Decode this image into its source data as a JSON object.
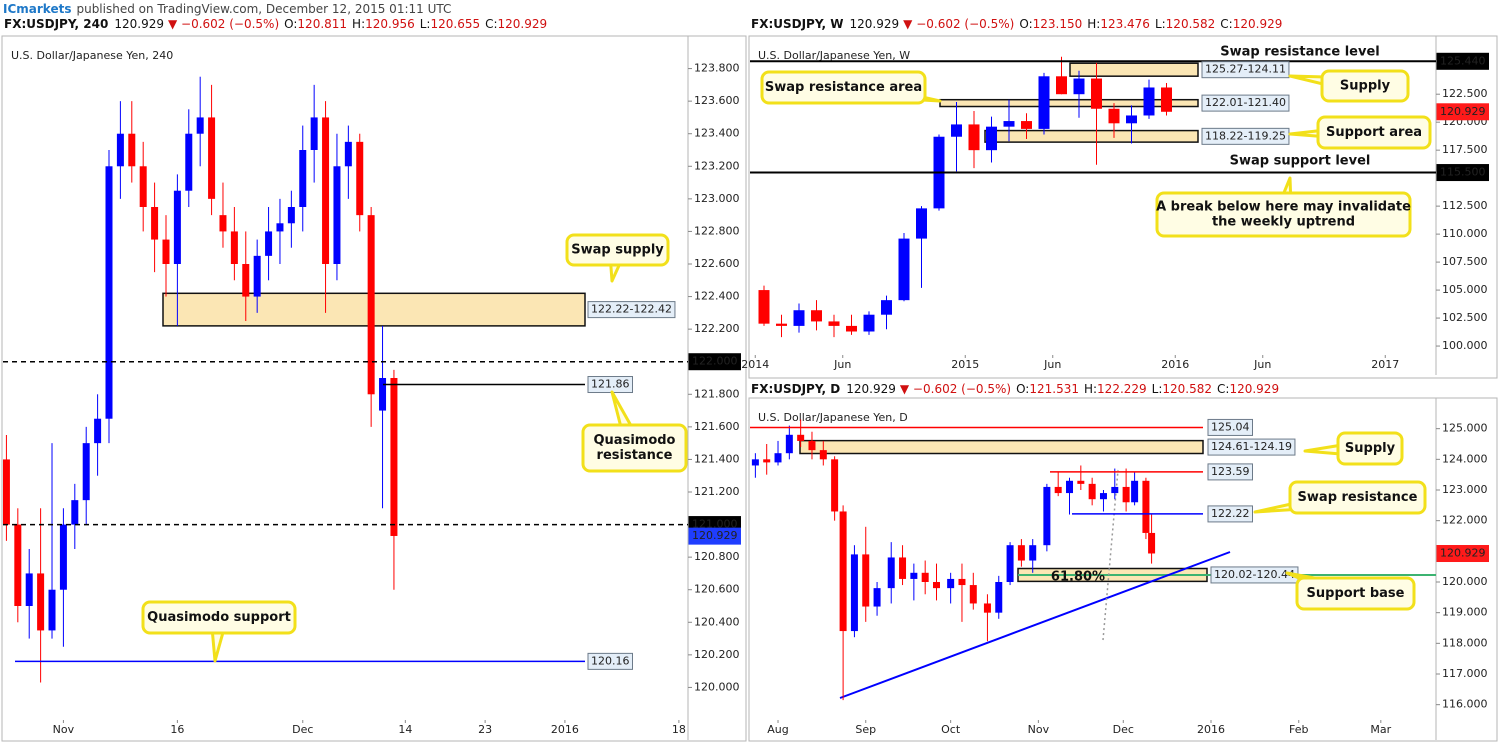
{
  "header": {
    "author": "ICmarkets",
    "text": "published on TradingView.com, December 12, 2015 01:11 UTC"
  },
  "chart_data": [
    {
      "type": "candlestick",
      "symbol": "FX:USDJPY, 240",
      "last": 120.929,
      "last_color": "#1f3dff",
      "change": "▼ −0.602 (−0.5%)",
      "ohlc_labels": [
        "O:",
        "H:",
        "L:",
        "C:"
      ],
      "ohlc_values": [
        "120.811",
        "120.956",
        "120.655",
        "120.929"
      ],
      "watermark": "U.S. Dollar/Japanese Yen, 240",
      "up_color": "#0000ff",
      "down_color": "#ff0000",
      "xlim": [
        -5.3,
        54.8
      ],
      "ylim": [
        119.8,
        124.0
      ],
      "xticks": [
        {
          "value": 0,
          "label": "Nov"
        },
        {
          "value": 10,
          "label": "16"
        },
        {
          "value": 21,
          "label": "Dec"
        },
        {
          "value": 30,
          "label": "14"
        },
        {
          "value": 37,
          "label": "23"
        },
        {
          "value": 44,
          "label": "2016"
        },
        {
          "value": 54,
          "label": "18"
        }
      ],
      "yticks": [
        {
          "value": 120.0,
          "label": "120.000"
        },
        {
          "value": 120.2,
          "label": "120.200"
        },
        {
          "value": 120.4,
          "label": "120.400"
        },
        {
          "value": 120.6,
          "label": "120.600"
        },
        {
          "value": 120.8,
          "label": "120.800"
        },
        {
          "value": 121.2,
          "label": "121.200"
        },
        {
          "value": 121.4,
          "label": "121.400"
        },
        {
          "value": 121.6,
          "label": "121.600"
        },
        {
          "value": 121.8,
          "label": "121.800"
        },
        {
          "value": 122.2,
          "label": "122.200"
        },
        {
          "value": 122.4,
          "label": "122.400"
        },
        {
          "value": 122.6,
          "label": "122.600"
        },
        {
          "value": 122.8,
          "label": "122.800"
        },
        {
          "value": 123.0,
          "label": "123.000"
        },
        {
          "value": 123.2,
          "label": "123.200"
        },
        {
          "value": 123.4,
          "label": "123.400"
        },
        {
          "value": 123.6,
          "label": "123.600"
        },
        {
          "value": 123.8,
          "label": "123.800"
        }
      ],
      "x": [
        -5,
        -4,
        -3,
        -2,
        -1,
        0,
        1,
        2,
        3,
        4,
        5,
        6,
        7,
        8,
        9,
        10,
        11,
        12,
        13,
        14,
        15,
        16,
        17,
        18,
        19,
        20,
        21,
        22,
        23,
        24,
        25,
        26,
        27,
        28,
        29
      ],
      "open": [
        121.4,
        121.0,
        120.5,
        120.7,
        120.35,
        120.6,
        121.0,
        121.15,
        121.5,
        121.65,
        123.2,
        123.4,
        123.2,
        122.95,
        122.75,
        122.6,
        123.05,
        123.4,
        123.5,
        122.9,
        122.8,
        122.6,
        122.4,
        122.65,
        122.8,
        122.85,
        122.95,
        123.3,
        123.5,
        122.6,
        123.2,
        123.35,
        122.9,
        121.7,
        121.9
      ],
      "high": [
        121.55,
        121.1,
        120.85,
        121.1,
        121.5,
        121.1,
        121.25,
        121.6,
        121.8,
        123.3,
        123.6,
        123.6,
        123.35,
        123.1,
        122.9,
        123.15,
        123.55,
        123.75,
        123.7,
        123.1,
        122.95,
        122.8,
        122.75,
        122.95,
        123.0,
        123.05,
        123.45,
        123.7,
        123.6,
        123.4,
        123.45,
        123.4,
        122.95,
        122.22,
        121.95
      ],
      "low": [
        120.9,
        120.4,
        120.3,
        120.03,
        120.3,
        120.25,
        120.85,
        121.0,
        121.3,
        121.5,
        123.0,
        123.1,
        122.8,
        122.55,
        122.4,
        122.22,
        122.95,
        123.2,
        122.9,
        122.7,
        122.5,
        122.25,
        122.3,
        122.5,
        122.6,
        122.7,
        122.8,
        123.1,
        122.3,
        122.5,
        123.0,
        122.8,
        121.6,
        121.1,
        120.6
      ],
      "close": [
        121.0,
        120.5,
        120.7,
        120.35,
        120.6,
        121.0,
        121.15,
        121.5,
        121.65,
        123.2,
        123.4,
        123.2,
        122.95,
        122.75,
        122.6,
        123.05,
        123.4,
        123.5,
        123.0,
        122.8,
        122.6,
        122.4,
        122.65,
        122.8,
        122.85,
        122.95,
        123.3,
        123.5,
        122.6,
        123.2,
        123.35,
        122.9,
        121.8,
        121.9,
        120.93
      ],
      "lines": [
        {
          "value": 122,
          "label": "122.000",
          "color": "#000000",
          "dashed": true
        },
        {
          "value": 121,
          "label": "121.000",
          "color": "#000000",
          "dashed": true
        },
        {
          "value": 121.86,
          "color": "#000000",
          "dashed": false
        },
        {
          "value": 120.16,
          "color": "#0000ff",
          "dashed": false
        }
      ],
      "zones": [
        {
          "low": 122.22,
          "high": 122.42,
          "label": "122.22-122.42"
        }
      ],
      "callouts": [
        [
          "Swap supply"
        ],
        [
          "Quasimodo",
          "resistance"
        ],
        [
          "Quasimodo support"
        ]
      ],
      "notes": []
    },
    {
      "type": "candlestick",
      "symbol": "FX:USDJPY, W",
      "last": 120.929,
      "last_color": "#ff1a1a",
      "change": "▼ −0.602 (−0.5%)",
      "ohlc_labels": [
        "O:",
        "H:",
        "L:",
        "C:"
      ],
      "ohlc_values": [
        "123.150",
        "123.476",
        "120.582",
        "120.929"
      ],
      "watermark": "U.S. Dollar/Japanese Yen, W",
      "up_color": "#0000ff",
      "down_color": "#ff0000",
      "xlim": [
        -0.3,
        38.9
      ],
      "ylim": [
        99.2,
        127.7
      ],
      "xticks": [
        {
          "value": 0,
          "label": "2014"
        },
        {
          "value": 5,
          "label": "Jun"
        },
        {
          "value": 12,
          "label": "2015"
        },
        {
          "value": 17,
          "label": "Jun"
        },
        {
          "value": 24,
          "label": "2016"
        },
        {
          "value": 29,
          "label": "Jun"
        },
        {
          "value": 36,
          "label": "2017"
        }
      ],
      "yticks": [
        {
          "value": 100,
          "label": "100.000"
        },
        {
          "value": 102.5,
          "label": "102.500"
        },
        {
          "value": 105,
          "label": "105.000"
        },
        {
          "value": 107.5,
          "label": "107.500"
        },
        {
          "value": 110,
          "label": "110.000"
        },
        {
          "value": 112.5,
          "label": "112.500"
        },
        {
          "value": 117.5,
          "label": "117.500"
        },
        {
          "value": 120,
          "label": "120.000"
        },
        {
          "value": 122.5,
          "label": "122.500"
        }
      ],
      "x": [
        0.5,
        1.5,
        2.5,
        3.5,
        4.5,
        5.5,
        6.5,
        7.5,
        8.5,
        9.5,
        10.5,
        11.5,
        12.5,
        13.5,
        14.5,
        15.5,
        16.5,
        17.5,
        18.5,
        19.5,
        20.5,
        21.5,
        22.5,
        23.5
      ],
      "open": [
        105.0,
        102.0,
        101.8,
        103.2,
        102.2,
        101.8,
        101.3,
        102.8,
        104.1,
        109.6,
        112.3,
        118.7,
        119.8,
        117.5,
        119.6,
        120.1,
        119.4,
        124.1,
        122.5,
        123.9,
        121.2,
        119.9,
        120.6,
        123.1
      ],
      "high": [
        105.4,
        102.8,
        103.8,
        104.1,
        102.8,
        102.8,
        103.1,
        104.5,
        110.1,
        112.5,
        118.9,
        121.8,
        121.0,
        120.5,
        122.0,
        120.8,
        124.4,
        125.85,
        124.6,
        125.3,
        121.7,
        121.5,
        123.8,
        123.5
      ],
      "low": [
        101.8,
        100.8,
        101.2,
        101.4,
        100.8,
        101.0,
        101.0,
        101.5,
        104.0,
        105.2,
        112.1,
        115.6,
        115.9,
        116.4,
        118.3,
        118.5,
        118.9,
        122.5,
        120.4,
        116.2,
        118.6,
        118.1,
        120.3,
        120.6
      ],
      "close": [
        102.0,
        101.8,
        103.2,
        102.2,
        101.8,
        101.3,
        102.8,
        104.1,
        109.6,
        112.3,
        118.7,
        119.8,
        117.5,
        119.6,
        120.1,
        119.4,
        124.1,
        122.5,
        123.9,
        121.2,
        119.9,
        120.6,
        123.1,
        120.93
      ],
      "lines": [
        {
          "value": 125.44,
          "label": "125.440",
          "color": "#000000",
          "dashed": false
        },
        {
          "value": 115.5,
          "label": "115.500",
          "color": "#000000",
          "dashed": false
        }
      ],
      "zones": [
        {
          "low": 124.11,
          "high": 125.27,
          "label": "125.27-124.11"
        },
        {
          "low": 121.4,
          "high": 122.01,
          "label": "122.01-121.40"
        },
        {
          "low": 118.22,
          "high": 119.25,
          "label": "118.22-119.25"
        }
      ],
      "callouts": [
        [
          "Swap resistance area"
        ],
        [
          "Supply"
        ],
        [
          "Support area"
        ],
        [
          "A break below here may invalidate",
          "the weekly uptrend"
        ]
      ],
      "notes": [
        "Swap resistance level",
        "Swap support level"
      ]
    },
    {
      "type": "candlestick",
      "symbol": "FX:USDJPY, D",
      "last": 120.929,
      "last_color": "#ff1a1a",
      "change": "▼ −0.602 (−0.5%)",
      "ohlc_labels": [
        "O:",
        "H:",
        "L:",
        "C:"
      ],
      "ohlc_values": [
        "121.531",
        "122.229",
        "120.582",
        "120.929"
      ],
      "watermark": "U.S. Dollar/Japanese Yen, D",
      "up_color": "#0000ff",
      "down_color": "#ff0000",
      "xlim": [
        -9.9,
        232.5
      ],
      "ylim": [
        115.5,
        126.0
      ],
      "xticks": [
        {
          "value": 0,
          "label": "Aug"
        },
        {
          "value": 31,
          "label": "Sep"
        },
        {
          "value": 61,
          "label": "Oct"
        },
        {
          "value": 92,
          "label": "Nov"
        },
        {
          "value": 122,
          "label": "Dec"
        },
        {
          "value": 153,
          "label": "2016"
        },
        {
          "value": 184,
          "label": "Feb"
        },
        {
          "value": 213,
          "label": "Mar"
        }
      ],
      "yticks": [
        {
          "value": 116,
          "label": "116.000"
        },
        {
          "value": 117,
          "label": "117.000"
        },
        {
          "value": 118,
          "label": "118.000"
        },
        {
          "value": 119,
          "label": "119.000"
        },
        {
          "value": 120,
          "label": "120.000"
        },
        {
          "value": 122,
          "label": "122.000"
        },
        {
          "value": 123,
          "label": "123.000"
        },
        {
          "value": 124,
          "label": "124.000"
        },
        {
          "value": 125,
          "label": "125.000"
        }
      ],
      "x": [
        -8,
        -4,
        0,
        4,
        8,
        12,
        16,
        20,
        23,
        27,
        31,
        35,
        40,
        44,
        48,
        52,
        56,
        61,
        65,
        69,
        74,
        78,
        82,
        86,
        90,
        95,
        99,
        103,
        107,
        111,
        115,
        119,
        123,
        126,
        130,
        132
      ],
      "open": [
        123.8,
        124.0,
        123.9,
        124.2,
        124.8,
        124.6,
        124.3,
        124.0,
        122.3,
        118.4,
        120.9,
        119.2,
        119.8,
        120.8,
        120.1,
        120.3,
        120.0,
        119.8,
        120.1,
        119.9,
        119.3,
        119.0,
        120.0,
        121.2,
        120.7,
        121.2,
        123.1,
        122.9,
        123.3,
        123.2,
        122.7,
        122.9,
        123.1,
        122.6,
        123.3,
        121.6
      ],
      "high": [
        124.2,
        124.5,
        124.6,
        125.1,
        125.3,
        124.9,
        124.6,
        124.1,
        122.5,
        121.2,
        121.8,
        120.0,
        121.3,
        121.2,
        120.6,
        120.7,
        120.6,
        120.3,
        120.6,
        120.3,
        119.6,
        120.2,
        121.3,
        121.4,
        121.4,
        123.2,
        123.6,
        123.4,
        123.8,
        123.4,
        123.0,
        123.7,
        123.7,
        123.6,
        123.4,
        122.2
      ],
      "low": [
        123.4,
        123.5,
        123.8,
        124.0,
        124.4,
        124.0,
        123.8,
        122.0,
        116.15,
        118.2,
        118.7,
        118.9,
        119.3,
        119.9,
        119.4,
        119.6,
        119.4,
        119.3,
        118.7,
        119.1,
        118.07,
        118.8,
        119.9,
        120.5,
        120.3,
        121.0,
        122.8,
        122.2,
        123.0,
        122.5,
        122.3,
        122.7,
        122.3,
        122.5,
        121.4,
        120.6
      ],
      "close": [
        124.0,
        123.9,
        124.2,
        124.8,
        124.6,
        124.3,
        124.0,
        122.3,
        118.4,
        120.9,
        119.2,
        119.8,
        120.8,
        120.1,
        120.3,
        120.0,
        119.8,
        120.1,
        119.9,
        119.3,
        119.0,
        120.0,
        121.2,
        120.7,
        121.2,
        123.1,
        122.9,
        123.3,
        123.2,
        122.7,
        122.9,
        123.1,
        122.6,
        123.3,
        121.6,
        120.93
      ],
      "lines": [
        {
          "value": 125.04,
          "color": "#ff0000",
          "dashed": false
        },
        {
          "value": 123.59,
          "color": "#ff0000",
          "dashed": false
        },
        {
          "value": 122.22,
          "color": "#0000ff",
          "dashed": false
        }
      ],
      "zones": [
        {
          "low": 124.19,
          "high": 124.61,
          "label": "124.61-124.19"
        },
        {
          "low": 120.02,
          "high": 120.44,
          "label": "120.02-120.44"
        }
      ],
      "callouts": [
        [
          "Supply"
        ],
        [
          "Swap resistance"
        ],
        [
          "Support base"
        ]
      ],
      "notes": [
        "61.80%"
      ]
    }
  ]
}
